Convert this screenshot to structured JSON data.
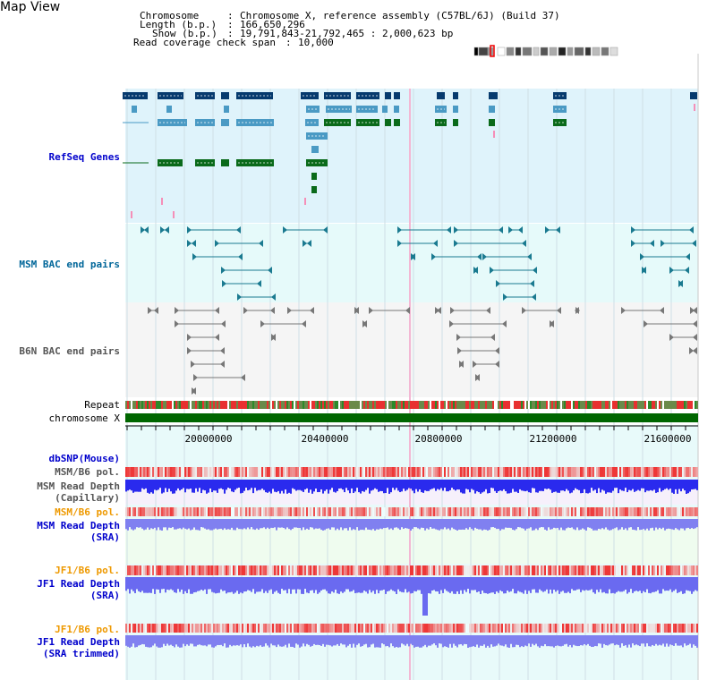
{
  "app_title": "Map View",
  "info": {
    "chromosome_key": "Chromosome",
    "chromosome_val": "Chromosome X, reference assembly (C57BL/6J) (Build 37)",
    "length_key": "Length (b.p.)",
    "length_val": "166,650,296",
    "show_key": "Show (b.p.)",
    "show_val": "19,791,843-21,792,465 : 2,000,623 bp",
    "span_key": "Read coverage check span",
    "span_val": "10,000"
  },
  "tracks": {
    "refseq": "RefSeq Genes",
    "msm_bac": "MSM BAC end pairs",
    "b6n_bac": "B6N BAC end pairs",
    "repeat": "Repeat",
    "chromosome": "chromosome X",
    "dbsnp": "dbSNP(Mouse)",
    "msm_pol_1": "MSM/B6 pol.",
    "msm_depth_cap_1": "MSM Read Depth",
    "msm_depth_cap_2": "(Capillary)",
    "msm_pol_2": "MSM/B6 pol.",
    "msm_depth_sra_1": "MSM Read Depth",
    "msm_depth_sra_2": "(SRA)",
    "jf1_pol_1": "JF1/B6 pol.",
    "jf1_depth_sra_1": "JF1 Read Depth",
    "jf1_depth_sra_2": "(SRA)",
    "jf1_pol_2": "JF1/B6 pol.",
    "jf1_depth_trim_1": "JF1 Read Depth",
    "jf1_depth_trim_2": "(SRA trimmed)"
  },
  "axis": {
    "ticks": [
      "20000000",
      "20400000",
      "20800000",
      "21200000",
      "21600000"
    ]
  },
  "colors": {
    "refseq_bg": "#dff3fb",
    "msm_bg": "#e6fafa",
    "b6n_bg": "#f5f5f5",
    "chrom_green": "#006600",
    "depth_blue": "#3333ee",
    "pol_red": "#ee3333"
  }
}
